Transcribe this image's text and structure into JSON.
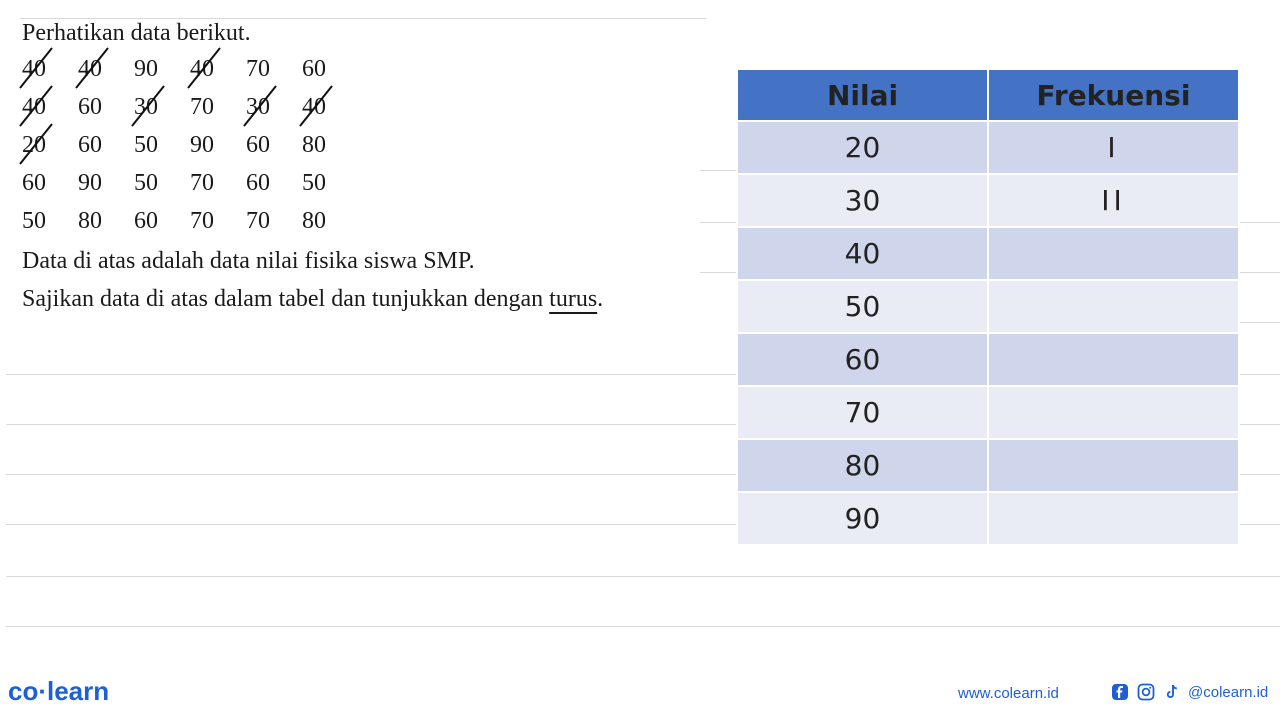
{
  "intro": "Perhatikan data berikut.",
  "data_rows": [
    [
      {
        "v": "40",
        "s": true
      },
      {
        "v": "40",
        "s": true
      },
      {
        "v": "90",
        "s": false
      },
      {
        "v": "40",
        "s": true
      },
      {
        "v": "70",
        "s": false
      },
      {
        "v": "60",
        "s": false
      }
    ],
    [
      {
        "v": "40",
        "s": true
      },
      {
        "v": "60",
        "s": false
      },
      {
        "v": "30",
        "s": true
      },
      {
        "v": "70",
        "s": false
      },
      {
        "v": "30",
        "s": true
      },
      {
        "v": "40",
        "s": true
      }
    ],
    [
      {
        "v": "20",
        "s": true
      },
      {
        "v": "60",
        "s": false
      },
      {
        "v": "50",
        "s": false
      },
      {
        "v": "90",
        "s": false
      },
      {
        "v": "60",
        "s": false
      },
      {
        "v": "80",
        "s": false
      }
    ],
    [
      {
        "v": "60",
        "s": false
      },
      {
        "v": "90",
        "s": false
      },
      {
        "v": "50",
        "s": false
      },
      {
        "v": "70",
        "s": false
      },
      {
        "v": "60",
        "s": false
      },
      {
        "v": "50",
        "s": false
      }
    ],
    [
      {
        "v": "50",
        "s": false
      },
      {
        "v": "80",
        "s": false
      },
      {
        "v": "60",
        "s": false
      },
      {
        "v": "70",
        "s": false
      },
      {
        "v": "70",
        "s": false
      },
      {
        "v": "80",
        "s": false
      }
    ]
  ],
  "note1": "Data di atas adalah data nilai fisika siswa SMP.",
  "note2_prefix": "Sajikan data di atas dalam tabel dan tunjukkan dengan ",
  "note2_underlined": "turus",
  "note2_suffix": ".",
  "table": {
    "headers": [
      "Nilai",
      "Frekuensi"
    ],
    "rows": [
      {
        "nilai": "20",
        "frekuensi": "I"
      },
      {
        "nilai": "30",
        "frekuensi": "II"
      },
      {
        "nilai": "40",
        "frekuensi": ""
      },
      {
        "nilai": "50",
        "frekuensi": ""
      },
      {
        "nilai": "60",
        "frekuensi": ""
      },
      {
        "nilai": "70",
        "frekuensi": ""
      },
      {
        "nilai": "80",
        "frekuensi": ""
      },
      {
        "nilai": "90",
        "frekuensi": ""
      }
    ],
    "header_color": "#4472c4",
    "row_colors": [
      "#cfd5ea",
      "#e9ebf5"
    ]
  },
  "footer": {
    "logo": "co·learn",
    "url": "www.colearn.id",
    "social_handle": "@colearn.id",
    "icons": [
      "facebook-icon",
      "instagram-icon",
      "tiktok-icon"
    ]
  }
}
